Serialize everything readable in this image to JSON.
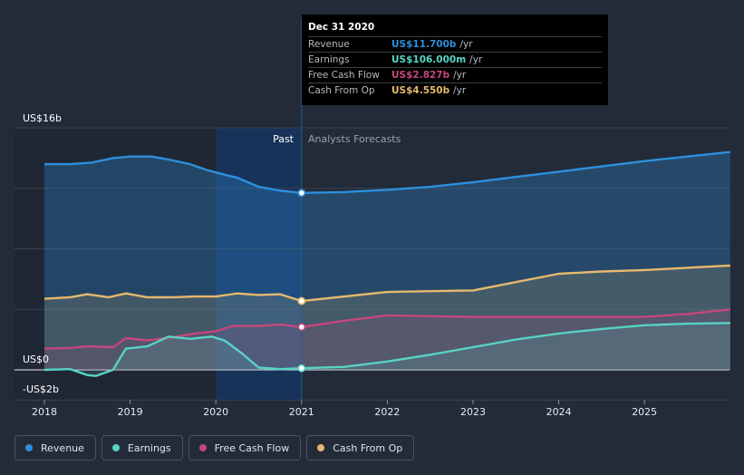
{
  "chart_data": {
    "type": "area",
    "title": "",
    "y_axis": {
      "top_label": "US$16b",
      "zero_label": "US$0",
      "bottom_label": "-US$2b",
      "ylim": [
        -2,
        16
      ]
    },
    "x_ticks": [
      "2018",
      "2019",
      "2020",
      "2021",
      "2022",
      "2023",
      "2024",
      "2025"
    ],
    "xlim": [
      2018,
      2026
    ],
    "divider_x": 2021,
    "highlight_range": [
      2020,
      2021
    ],
    "past_label": "Past",
    "forecast_label": "Analysts Forecasts",
    "series": [
      {
        "name": "Revenue",
        "color": "#2d8fdc",
        "x": [
          2018,
          2018.3,
          2018.55,
          2018.8,
          2019,
          2019.25,
          2019.45,
          2019.7,
          2019.9,
          2020.1,
          2020.25,
          2020.5,
          2020.75,
          2021,
          2021.5,
          2022,
          2022.5,
          2023,
          2023.5,
          2024,
          2024.5,
          2025,
          2025.5,
          2026
        ],
        "y": [
          13.6,
          13.6,
          13.7,
          14.0,
          14.1,
          14.1,
          13.9,
          13.6,
          13.2,
          12.9,
          12.7,
          12.1,
          11.85,
          11.7,
          11.75,
          11.9,
          12.1,
          12.4,
          12.75,
          13.1,
          13.45,
          13.8,
          14.1,
          14.4
        ]
      },
      {
        "name": "Earnings",
        "color": "#58d3c5",
        "x": [
          2018,
          2018.3,
          2018.5,
          2018.6,
          2018.8,
          2018.95,
          2019.2,
          2019.45,
          2019.7,
          2019.95,
          2020.1,
          2020.3,
          2020.5,
          2020.75,
          2021,
          2021.5,
          2022,
          2022.5,
          2023,
          2023.5,
          2024,
          2024.5,
          2025,
          2025.5,
          2026
        ],
        "y": [
          0.0,
          0.05,
          -0.35,
          -0.4,
          0.0,
          1.4,
          1.55,
          2.2,
          2.05,
          2.2,
          1.95,
          1.1,
          0.15,
          0.05,
          0.106,
          0.2,
          0.55,
          1.0,
          1.5,
          2.0,
          2.4,
          2.7,
          2.95,
          3.05,
          3.1
        ]
      },
      {
        "name": "Free Cash Flow",
        "color": "#c4477b",
        "x": [
          2018,
          2018.3,
          2018.5,
          2018.8,
          2018.95,
          2019.2,
          2019.5,
          2019.75,
          2020,
          2020.2,
          2020.5,
          2020.75,
          2021,
          2021.5,
          2022,
          2022.5,
          2023,
          2023.5,
          2024,
          2024.5,
          2025,
          2025.5,
          2026
        ],
        "y": [
          1.4,
          1.45,
          1.55,
          1.5,
          2.1,
          1.95,
          2.15,
          2.4,
          2.55,
          2.9,
          2.9,
          3.0,
          2.83,
          3.25,
          3.6,
          3.55,
          3.5,
          3.5,
          3.5,
          3.5,
          3.5,
          3.7,
          4.0
        ]
      },
      {
        "name": "Cash From Op",
        "color": "#e6b86d",
        "x": [
          2018,
          2018.3,
          2018.5,
          2018.75,
          2018.95,
          2019.2,
          2019.5,
          2019.75,
          2020,
          2020.25,
          2020.5,
          2020.75,
          2021,
          2021.5,
          2022,
          2022.5,
          2023,
          2023.5,
          2024,
          2024.5,
          2025,
          2025.5,
          2026
        ],
        "y": [
          4.7,
          4.8,
          5.0,
          4.8,
          5.05,
          4.8,
          4.8,
          4.85,
          4.85,
          5.05,
          4.95,
          5.0,
          4.55,
          4.85,
          5.15,
          5.2,
          5.25,
          5.8,
          6.35,
          6.5,
          6.6,
          6.75,
          6.9
        ]
      }
    ],
    "tooltip": {
      "date": "Dec 31 2020",
      "rows": [
        {
          "name": "Revenue",
          "value": "US$11.700b",
          "unit": "/yr",
          "color": "#2d8fdc"
        },
        {
          "name": "Earnings",
          "value": "US$106.000m",
          "unit": "/yr",
          "color": "#58d3c5"
        },
        {
          "name": "Free Cash Flow",
          "value": "US$2.827b",
          "unit": "/yr",
          "color": "#c4477b"
        },
        {
          "name": "Cash From Op",
          "value": "US$4.550b",
          "unit": "/yr",
          "color": "#e6b86d"
        }
      ]
    },
    "legend": [
      {
        "name": "Revenue",
        "color": "#2d8fdc"
      },
      {
        "name": "Earnings",
        "color": "#58d3c5"
      },
      {
        "name": "Free Cash Flow",
        "color": "#c4477b"
      },
      {
        "name": "Cash From Op",
        "color": "#e6b86d"
      }
    ]
  }
}
